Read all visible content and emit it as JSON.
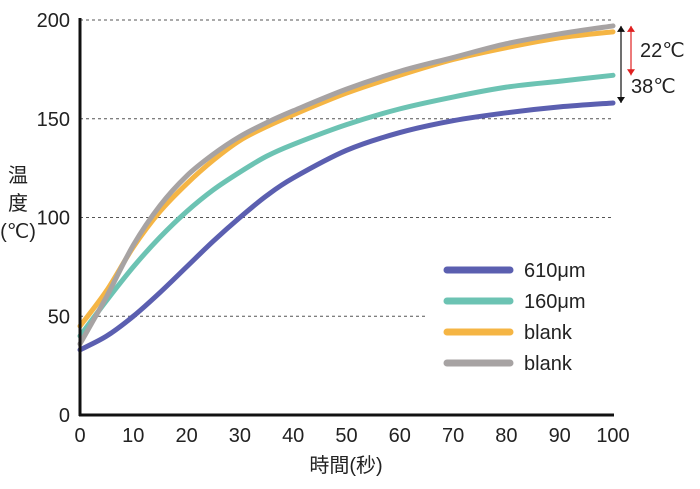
{
  "chart_data": {
    "type": "line",
    "xlabel": "時間(秒)",
    "ylabel": [
      "温",
      "度",
      "(℃)"
    ],
    "xlim": [
      0,
      100
    ],
    "ylim": [
      0,
      200
    ],
    "xticks": [
      0,
      10,
      20,
      30,
      40,
      50,
      60,
      70,
      80,
      90,
      100
    ],
    "yticks": [
      0,
      50,
      100,
      150,
      200
    ],
    "grid": "dashed horizontal",
    "legend_position": "bottom-right",
    "x": [
      0,
      5,
      10,
      15,
      20,
      25,
      30,
      35,
      40,
      50,
      60,
      70,
      80,
      90,
      100
    ],
    "series": [
      {
        "name": "610μm",
        "color": "#5b5fb0",
        "values": [
          33,
          40,
          50,
          62,
          75,
          88,
          100,
          111,
          120,
          134,
          143,
          149,
          153,
          156,
          158
        ]
      },
      {
        "name": "160μm",
        "color": "#6cc3b3",
        "values": [
          40,
          58,
          75,
          90,
          103,
          114,
          123,
          131,
          137,
          147,
          155,
          161,
          166,
          169,
          172
        ]
      },
      {
        "name": "blank",
        "color": "#f5b544",
        "values": [
          45,
          63,
          85,
          103,
          117,
          129,
          139,
          146,
          152,
          163,
          172,
          180,
          186,
          191,
          194
        ]
      },
      {
        "name": "blank",
        "color": "#a7a3a3",
        "values": [
          36,
          60,
          86,
          106,
          121,
          132,
          141,
          148,
          154,
          165,
          174,
          181,
          188,
          193,
          197
        ]
      }
    ],
    "annotations": [
      {
        "text": "22℃",
        "color": "#e02020"
      },
      {
        "text": "38℃",
        "color": "#111111"
      }
    ]
  }
}
